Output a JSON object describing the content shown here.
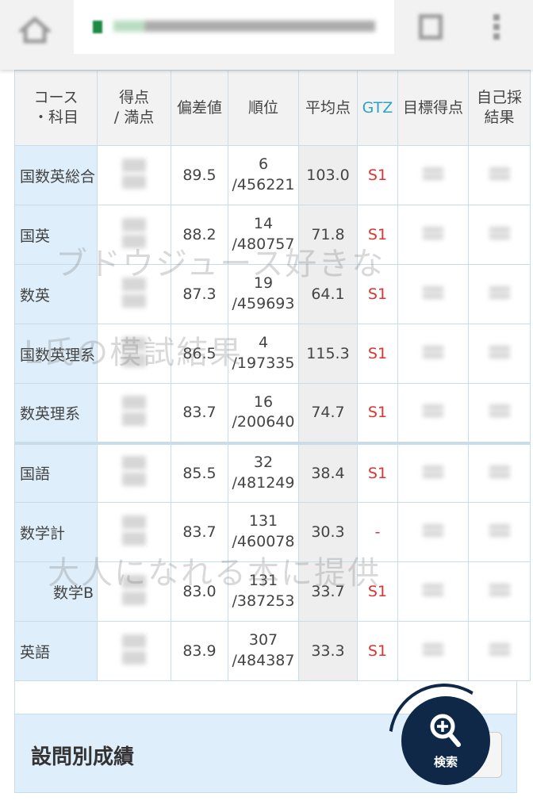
{
  "browser": {
    "url": "ips.**manabi.benesse.ne.jp"
  },
  "table": {
    "headers": [
      "コース\n・科目",
      "得点\n/ 満点",
      "偏差値",
      "順位",
      "平均点",
      "GTZ",
      "目標得点",
      "自己採\n結果"
    ],
    "rows": [
      {
        "name": "国数英総合",
        "deviation": "89.5",
        "rank": "6",
        "total": "/456221",
        "avg": "103.0",
        "gtz": "S1"
      },
      {
        "name": "国英",
        "deviation": "88.2",
        "rank": "14",
        "total": "/480757",
        "avg": "71.8",
        "gtz": "S1"
      },
      {
        "name": "数英",
        "deviation": "87.3",
        "rank": "19",
        "total": "/459693",
        "avg": "64.1",
        "gtz": "S1"
      },
      {
        "name": "国数英理系",
        "deviation": "86.5",
        "rank": "4",
        "total": "/197335",
        "avg": "115.3",
        "gtz": "S1"
      },
      {
        "name": "数英理系",
        "deviation": "83.7",
        "rank": "16",
        "total": "/200640",
        "avg": "74.7",
        "gtz": "S1"
      },
      {
        "name": "国語",
        "deviation": "85.5",
        "rank": "32",
        "total": "/481249",
        "avg": "38.4",
        "gtz": "S1"
      },
      {
        "name": "数学計",
        "deviation": "83.7",
        "rank": "131",
        "total": "/460078",
        "avg": "30.3",
        "gtz": "-"
      },
      {
        "name": "数学B",
        "deviation": "83.0",
        "rank": "131",
        "total": "/387253",
        "avg": "33.7",
        "gtz": "S1"
      },
      {
        "name": "英語",
        "deviation": "83.9",
        "rank": "307",
        "total": "/484387",
        "avg": "33.3",
        "gtz": "S1"
      }
    ]
  },
  "watermarks": [
    "ブドウジュース好きな",
    "L氏の模試結果",
    "大人になれる本に提供"
  ],
  "section": {
    "title": "設問別成績"
  },
  "fab": {
    "label": "検索",
    "icon": "zoom-in-icon"
  },
  "colors": {
    "gtz_header": "#29a3c4",
    "gtz_value": "#d33333",
    "name_bg": "#deeefa",
    "fab": "#0f2848"
  }
}
